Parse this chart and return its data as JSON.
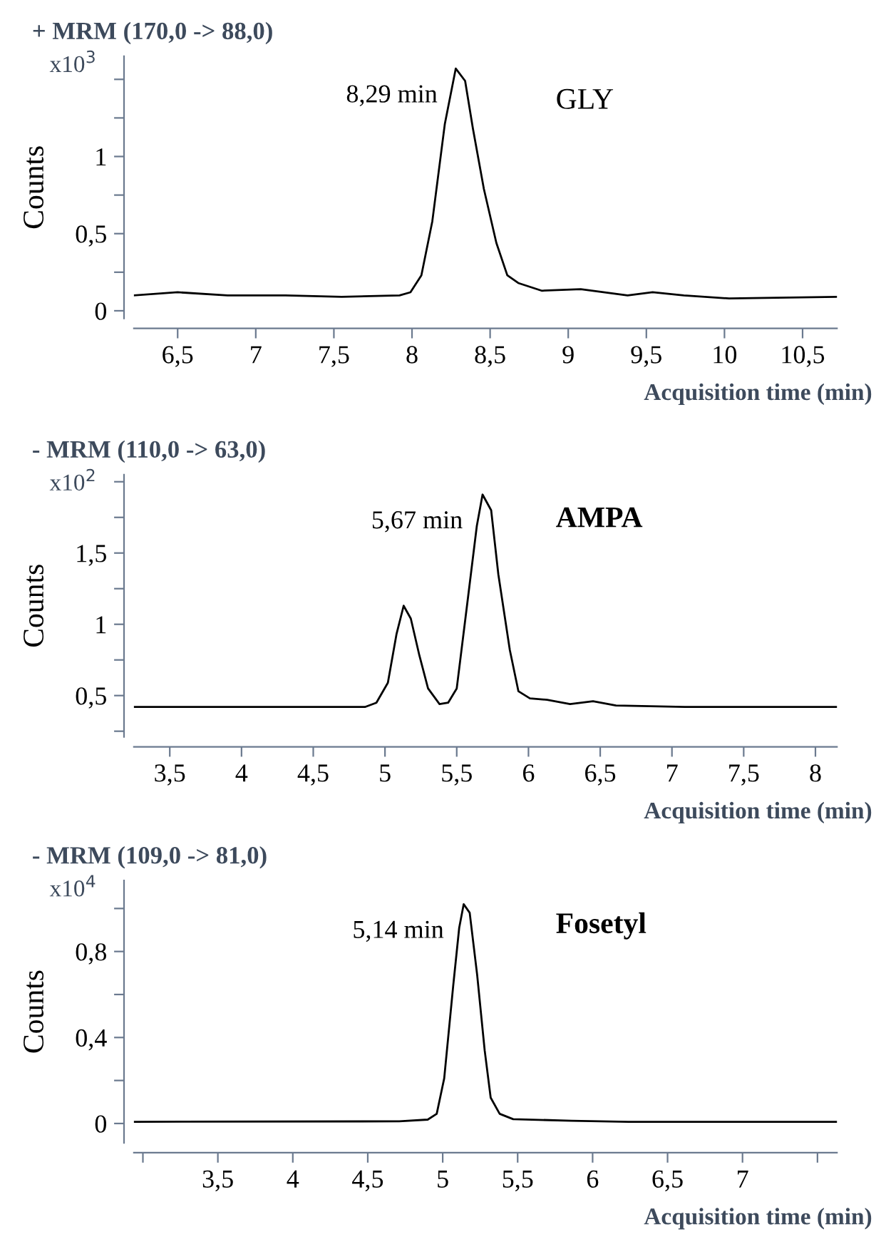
{
  "chart_data": [
    {
      "type": "line",
      "title": "+ MRM (170,0 -> 88,0)",
      "xlabel": "Acquisition time (min)",
      "ylabel": "Counts",
      "annotations": [
        "x10$^{3}$",
        "GLY",
        {
          "text": "8,29 min",
          "x": 8.29,
          "y": 1.57
        }
      ],
      "series": [
        {
          "color": "#000000",
          "x": [
            6.22,
            6.5,
            6.82,
            7.19,
            7.55,
            7.92,
            7.99,
            8.06,
            8.13,
            8.21,
            8.28,
            8.34,
            8.39,
            8.46,
            8.54,
            8.61,
            8.68,
            8.83,
            9.08,
            9.38,
            9.54,
            9.74,
            10.03,
            10.72
          ],
          "values": [
            0.1,
            0.12,
            0.1,
            0.1,
            0.09,
            0.1,
            0.12,
            0.23,
            0.58,
            1.21,
            1.57,
            1.49,
            1.18,
            0.79,
            0.44,
            0.23,
            0.18,
            0.13,
            0.14,
            0.1,
            0.12,
            0.1,
            0.08,
            0.09
          ]
        }
      ],
      "xlim": [
        6.22,
        10.72
      ],
      "xticks": [
        {
          "value": 6.5,
          "label": "6,5"
        },
        7,
        {
          "value": 7.5,
          "label": "7,5"
        },
        8,
        {
          "value": 8.5,
          "label": "8,5"
        },
        9,
        {
          "value": 9.5,
          "label": "9,5"
        },
        10,
        {
          "value": 10.5,
          "label": "10,5"
        }
      ],
      "ylim": [
        -0.05,
        1.65
      ],
      "yticks": [
        0,
        {
          "value": 0.25,
          "label": null
        },
        {
          "value": 0.5,
          "label": "0,5"
        },
        {
          "value": 0.75,
          "label": null
        },
        1,
        {
          "value": 1.25,
          "label": null
        },
        {
          "value": 1.5,
          "label": null
        }
      ],
      "grid": false,
      "legend": false
    },
    {
      "type": "line",
      "title": "- MRM (110,0 -> 63,0)",
      "xlabel": "Acquisition time (min)",
      "ylabel": "Counts",
      "annotations": [
        "x10$^{2}$",
        "AMPA",
        {
          "text": "5,67 min",
          "x": 5.68,
          "y": 1.91
        }
      ],
      "series": [
        {
          "color": "#000000",
          "x": [
            3.25,
            3.91,
            4.5,
            4.86,
            4.94,
            5.02,
            5.08,
            5.13,
            5.18,
            5.24,
            5.3,
            5.38,
            5.44,
            5.5,
            5.58,
            5.64,
            5.68,
            5.74,
            5.79,
            5.87,
            5.93,
            6.01,
            6.13,
            6.29,
            6.45,
            6.61,
            7.09,
            7.68,
            8.15
          ],
          "values": [
            0.42,
            0.42,
            0.42,
            0.42,
            0.45,
            0.59,
            0.93,
            1.13,
            1.04,
            0.78,
            0.55,
            0.44,
            0.45,
            0.55,
            1.2,
            1.69,
            1.91,
            1.8,
            1.35,
            0.82,
            0.53,
            0.48,
            0.47,
            0.44,
            0.46,
            0.43,
            0.42,
            0.42,
            0.42
          ]
        }
      ],
      "xlim": [
        3.25,
        8.15
      ],
      "xticks": [
        {
          "value": 3.5,
          "label": "3,5"
        },
        4,
        {
          "value": 4.5,
          "label": "4,5"
        },
        5,
        {
          "value": 5.5,
          "label": "5,5"
        },
        6,
        {
          "value": 6.5,
          "label": "6,5"
        },
        7,
        {
          "value": 7.5,
          "label": "7,5"
        },
        8
      ],
      "ylim": [
        0.21,
        2.05
      ],
      "yticks": [
        {
          "value": 0.25,
          "label": null
        },
        {
          "value": 0.5,
          "label": "0,5"
        },
        {
          "value": 0.75,
          "label": null
        },
        1,
        {
          "value": 1.25,
          "label": null
        },
        {
          "value": 1.5,
          "label": "1,5"
        },
        {
          "value": 1.75,
          "label": null
        },
        {
          "value": 2,
          "label": null
        }
      ],
      "grid": false,
      "legend": false
    },
    {
      "type": "line",
      "title": "- MRM (109,0 -> 81,0)",
      "xlabel": "Acquisition time (min)",
      "ylabel": "Counts",
      "annotations": [
        "x10$^{4}$",
        "Fosetyl",
        {
          "text": "5,14 min",
          "x": 5.14,
          "y": 1.02
        }
      ],
      "series": [
        {
          "color": "#000000",
          "x": [
            2.94,
            4.71,
            4.9,
            4.96,
            5.01,
            5.07,
            5.11,
            5.14,
            5.18,
            5.23,
            5.28,
            5.32,
            5.38,
            5.47,
            5.86,
            6.24,
            7.63
          ],
          "values": [
            0.008,
            0.01,
            0.018,
            0.045,
            0.21,
            0.64,
            0.91,
            1.02,
            0.98,
            0.69,
            0.34,
            0.12,
            0.045,
            0.02,
            0.013,
            0.008,
            0.008
          ]
        }
      ],
      "xlim": [
        2.94,
        7.63
      ],
      "xticks": [
        {
          "value": 3,
          "label": null
        },
        {
          "value": 3.5,
          "label": "3,5"
        },
        4,
        {
          "value": 4.5,
          "label": "4,5"
        },
        5,
        {
          "value": 5.5,
          "label": "5,5"
        },
        6,
        {
          "value": 6.5,
          "label": "6,5"
        },
        7,
        {
          "value": 7.5,
          "label": null
        }
      ],
      "ylim": [
        -0.09,
        1.13
      ],
      "yticks": [
        0,
        {
          "value": 0.2,
          "label": null
        },
        {
          "value": 0.4,
          "label": "0,4"
        },
        {
          "value": 0.6,
          "label": null
        },
        {
          "value": 0.8,
          "label": "0,8"
        },
        {
          "value": 1.0,
          "label": null
        }
      ],
      "grid": false,
      "legend": false
    }
  ]
}
